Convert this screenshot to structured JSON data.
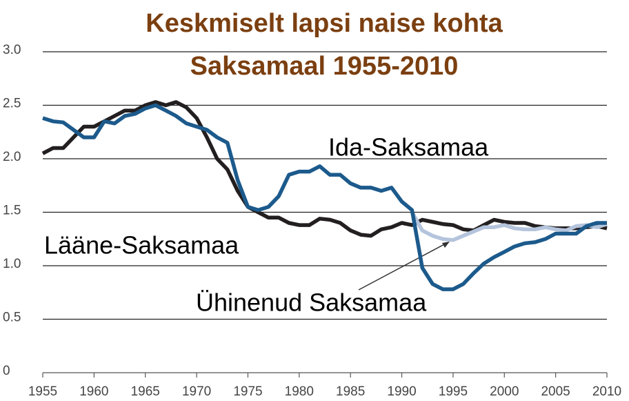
{
  "chart_data": {
    "type": "line",
    "title": "Keskmiselt lapsi naise kohta",
    "subtitle": "Saksamaal 1955-2010",
    "x": [
      1955,
      1956,
      1957,
      1958,
      1959,
      1960,
      1961,
      1962,
      1963,
      1964,
      1965,
      1966,
      1967,
      1968,
      1969,
      1970,
      1971,
      1972,
      1973,
      1974,
      1975,
      1976,
      1977,
      1978,
      1979,
      1980,
      1981,
      1982,
      1983,
      1984,
      1985,
      1986,
      1987,
      1988,
      1989,
      1990,
      1991,
      1992,
      1993,
      1994,
      1995,
      1996,
      1997,
      1998,
      1999,
      2000,
      2001,
      2002,
      2003,
      2004,
      2005,
      2006,
      2007,
      2008,
      2009,
      2010
    ],
    "series": [
      {
        "name": "Lääne-Saksamaa",
        "color": "#231f20",
        "values": [
          2.05,
          2.1,
          2.1,
          2.2,
          2.3,
          2.3,
          2.35,
          2.4,
          2.45,
          2.45,
          2.5,
          2.53,
          2.5,
          2.53,
          2.48,
          2.38,
          2.2,
          2.0,
          1.9,
          1.7,
          1.55,
          1.5,
          1.45,
          1.45,
          1.4,
          1.38,
          1.38,
          1.44,
          1.43,
          1.4,
          1.33,
          1.29,
          1.28,
          1.34,
          1.36,
          1.4,
          1.38,
          1.43,
          1.41,
          1.39,
          1.38,
          1.34,
          1.33,
          1.38,
          1.43,
          1.41,
          1.4,
          1.4,
          1.37,
          1.36,
          1.35,
          1.35,
          1.35,
          1.36,
          1.37,
          1.35
        ]
      },
      {
        "name": "Ida-Saksamaa",
        "color": "#1c5a8c",
        "values": [
          2.38,
          2.35,
          2.34,
          2.27,
          2.2,
          2.2,
          2.35,
          2.33,
          2.4,
          2.42,
          2.47,
          2.5,
          2.45,
          2.4,
          2.33,
          2.3,
          2.27,
          2.2,
          2.15,
          1.8,
          1.55,
          1.52,
          1.55,
          1.65,
          1.85,
          1.88,
          1.88,
          1.93,
          1.85,
          1.85,
          1.77,
          1.73,
          1.73,
          1.7,
          1.73,
          1.6,
          1.52,
          0.98,
          0.83,
          0.78,
          0.78,
          0.83,
          0.93,
          1.02,
          1.08,
          1.13,
          1.18,
          1.21,
          1.22,
          1.25,
          1.3,
          1.3,
          1.3,
          1.37,
          1.4,
          1.4
        ]
      },
      {
        "name": "Ühinenud Saksamaa",
        "color": "#b4c4dc",
        "values": [
          null,
          null,
          null,
          null,
          null,
          null,
          null,
          null,
          null,
          null,
          null,
          null,
          null,
          null,
          null,
          null,
          null,
          null,
          null,
          null,
          null,
          null,
          null,
          null,
          null,
          null,
          null,
          null,
          null,
          null,
          null,
          null,
          null,
          null,
          null,
          null,
          1.5,
          1.33,
          1.28,
          1.25,
          1.24,
          1.28,
          1.32,
          1.36,
          1.36,
          1.38,
          1.35,
          1.34,
          1.34,
          1.36,
          1.34,
          1.33,
          1.37,
          1.38,
          1.36,
          1.39
        ]
      }
    ],
    "xlim": [
      1955,
      2010
    ],
    "xticks": [
      1955,
      1960,
      1965,
      1970,
      1975,
      1980,
      1985,
      1990,
      1995,
      2000,
      2005,
      2010
    ],
    "ylim": [
      0,
      3
    ],
    "yticks": [
      0,
      {
        "value": 0.5,
        "label": "0.5"
      },
      {
        "value": 1,
        "label": "1.0"
      },
      {
        "value": 1.5,
        "label": "1.5"
      },
      {
        "value": 2,
        "label": "2.0"
      },
      {
        "value": 2.5,
        "label": "2.5"
      },
      {
        "value": 3,
        "label": "3.0"
      }
    ],
    "grid": true
  }
}
